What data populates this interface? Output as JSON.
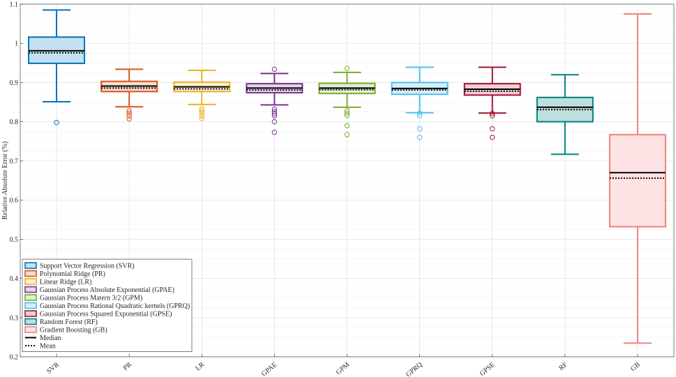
{
  "chart_data": {
    "type": "box",
    "title": "",
    "xlabel": "",
    "ylabel": "Relative Absolute Error (%)",
    "ylim": [
      0.2,
      1.1
    ],
    "yticks": [
      "0.2",
      "0.3",
      "0.4",
      "0.5",
      "0.6",
      "0.7",
      "0.8",
      "0.9",
      "1",
      "1.1"
    ],
    "grid": true,
    "legend_position": "bottom-left",
    "categories": [
      "SVR",
      "PR",
      "LR",
      "GPAE",
      "GPM",
      "GPRQ",
      "GPSE",
      "RF",
      "GB"
    ],
    "series": [
      {
        "name": "Support Vector Regression (SVR)",
        "color": "#0072BD",
        "fill": "#C5E0F0",
        "whisker_low": 0.851,
        "q1": 0.949,
        "median": 0.981,
        "mean": 0.976,
        "q3": 1.016,
        "whisker_high": 1.085,
        "outliers": [
          0.798
        ]
      },
      {
        "name": "Polynomial Ridge (PR)",
        "color": "#D95319",
        "fill": "#F8DCCF",
        "whisker_low": 0.838,
        "q1": 0.877,
        "median": 0.891,
        "mean": 0.886,
        "q3": 0.903,
        "whisker_high": 0.934,
        "outliers": [
          0.828,
          0.822,
          0.815,
          0.807
        ]
      },
      {
        "name": "Linear Ridge (LR)",
        "color": "#EDB120",
        "fill": "#FBEFCF",
        "whisker_low": 0.844,
        "q1": 0.877,
        "median": 0.889,
        "mean": 0.884,
        "q3": 0.901,
        "whisker_high": 0.931,
        "outliers": [
          0.833,
          0.828,
          0.822,
          0.815,
          0.808
        ]
      },
      {
        "name": "Gaussian Process Absolute Exponential (GPAE)",
        "color": "#7E2F8E",
        "fill": "#E8D6EC",
        "whisker_low": 0.843,
        "q1": 0.874,
        "median": 0.886,
        "mean": 0.881,
        "q3": 0.897,
        "whisker_high": 0.923,
        "outliers": [
          0.934,
          0.832,
          0.826,
          0.82,
          0.815,
          0.8,
          0.773
        ]
      },
      {
        "name": "Gaussian Process Matern 3/2 (GPM)",
        "color": "#77AC30",
        "fill": "#E1EED2",
        "whisker_low": 0.837,
        "q1": 0.872,
        "median": 0.886,
        "mean": 0.882,
        "q3": 0.898,
        "whisker_high": 0.926,
        "outliers": [
          0.936,
          0.828,
          0.822,
          0.816,
          0.79,
          0.767
        ]
      },
      {
        "name": "Gaussian Process Rational Quadratic kernels (GPRQ)",
        "color": "#4DBEEE",
        "fill": "#D6F0FC",
        "whisker_low": 0.823,
        "q1": 0.87,
        "median": 0.885,
        "mean": 0.881,
        "q3": 0.9,
        "whisker_high": 0.939,
        "outliers": [
          0.822,
          0.815,
          0.782,
          0.76
        ]
      },
      {
        "name": "Gaussian Process Squared Exponential (GPSE)",
        "color": "#A2142F",
        "fill": "#F3CFD6",
        "whisker_low": 0.822,
        "q1": 0.868,
        "median": 0.883,
        "mean": 0.878,
        "q3": 0.897,
        "whisker_high": 0.939,
        "outliers": [
          0.821,
          0.815,
          0.782,
          0.76
        ]
      },
      {
        "name": "Random Forest (RF)",
        "color": "#008080",
        "fill": "#BFDFDF",
        "whisker_low": 0.717,
        "q1": 0.8,
        "median": 0.837,
        "mean": 0.831,
        "q3": 0.862,
        "whisker_high": 0.92,
        "outliers": []
      },
      {
        "name": "Gradient Boosting (GB)",
        "color": "#F08080",
        "fill": "#FDE3E3",
        "whisker_low": 0.235,
        "q1": 0.532,
        "median": 0.67,
        "mean": 0.656,
        "q3": 0.767,
        "whisker_high": 1.075,
        "outliers": []
      }
    ],
    "legend_extra": [
      {
        "name": "Median",
        "style": "solid"
      },
      {
        "name": "Mean",
        "style": "dotted"
      }
    ]
  }
}
